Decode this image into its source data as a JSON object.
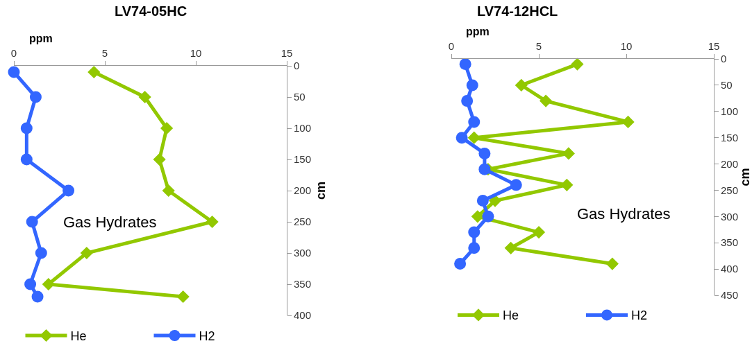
{
  "chart_data": [
    {
      "type": "line",
      "title": "LV74-05HC",
      "xlabel": "ppm",
      "ylabel": "cm",
      "xlim": [
        0,
        15
      ],
      "xticks": [
        0,
        5,
        10,
        15
      ],
      "ylim": [
        400,
        0
      ],
      "yticks": [
        0,
        50,
        100,
        150,
        200,
        250,
        300,
        350,
        400
      ],
      "grid": false,
      "legend": "bottom",
      "line_style": "solid",
      "annotations": [
        "Gas Hydrates"
      ],
      "series": [
        {
          "name": "He",
          "color": "#92c800",
          "marker": "diamond",
          "x": [
            4.4,
            7.2,
            8.4,
            8.0,
            8.5,
            10.9,
            4.0,
            1.9,
            9.3
          ],
          "values": [
            10,
            50,
            100,
            150,
            200,
            250,
            300,
            350,
            370
          ]
        },
        {
          "name": "H2",
          "color": "#3366ff",
          "marker": "circle",
          "x": [
            0,
            1.2,
            0.7,
            0.7,
            3.0,
            1.0,
            1.5,
            0.9,
            1.3
          ],
          "values": [
            10,
            50,
            100,
            150,
            200,
            250,
            300,
            350,
            370
          ]
        }
      ]
    },
    {
      "type": "line",
      "title": "LV74-12HCL",
      "xlabel": "ppm",
      "ylabel": "cm",
      "xlim": [
        0,
        15
      ],
      "xticks": [
        0,
        5,
        10,
        15
      ],
      "ylim": [
        450,
        0
      ],
      "yticks": [
        0,
        50,
        100,
        150,
        200,
        250,
        300,
        350,
        400,
        450
      ],
      "grid": false,
      "legend": "bottom",
      "line_style": "solid",
      "annotations": [
        "Gas Hydrates"
      ],
      "series": [
        {
          "name": "He",
          "color": "#92c800",
          "marker": "diamond",
          "x": [
            7.2,
            4.0,
            5.4,
            10.1,
            1.3,
            6.7,
            2.1,
            6.6,
            2.5,
            1.5,
            5.0,
            3.4,
            9.2
          ],
          "values": [
            10,
            50,
            80,
            120,
            150,
            180,
            210,
            240,
            270,
            300,
            330,
            360,
            390
          ]
        },
        {
          "name": "H2",
          "color": "#3366ff",
          "marker": "circle",
          "x": [
            0.8,
            1.2,
            0.9,
            1.3,
            0.6,
            1.9,
            1.9,
            3.7,
            1.8,
            2.1,
            1.3,
            1.3,
            0.5
          ],
          "values": [
            10,
            50,
            80,
            120,
            150,
            180,
            210,
            240,
            270,
            300,
            330,
            360,
            390
          ]
        }
      ]
    }
  ]
}
